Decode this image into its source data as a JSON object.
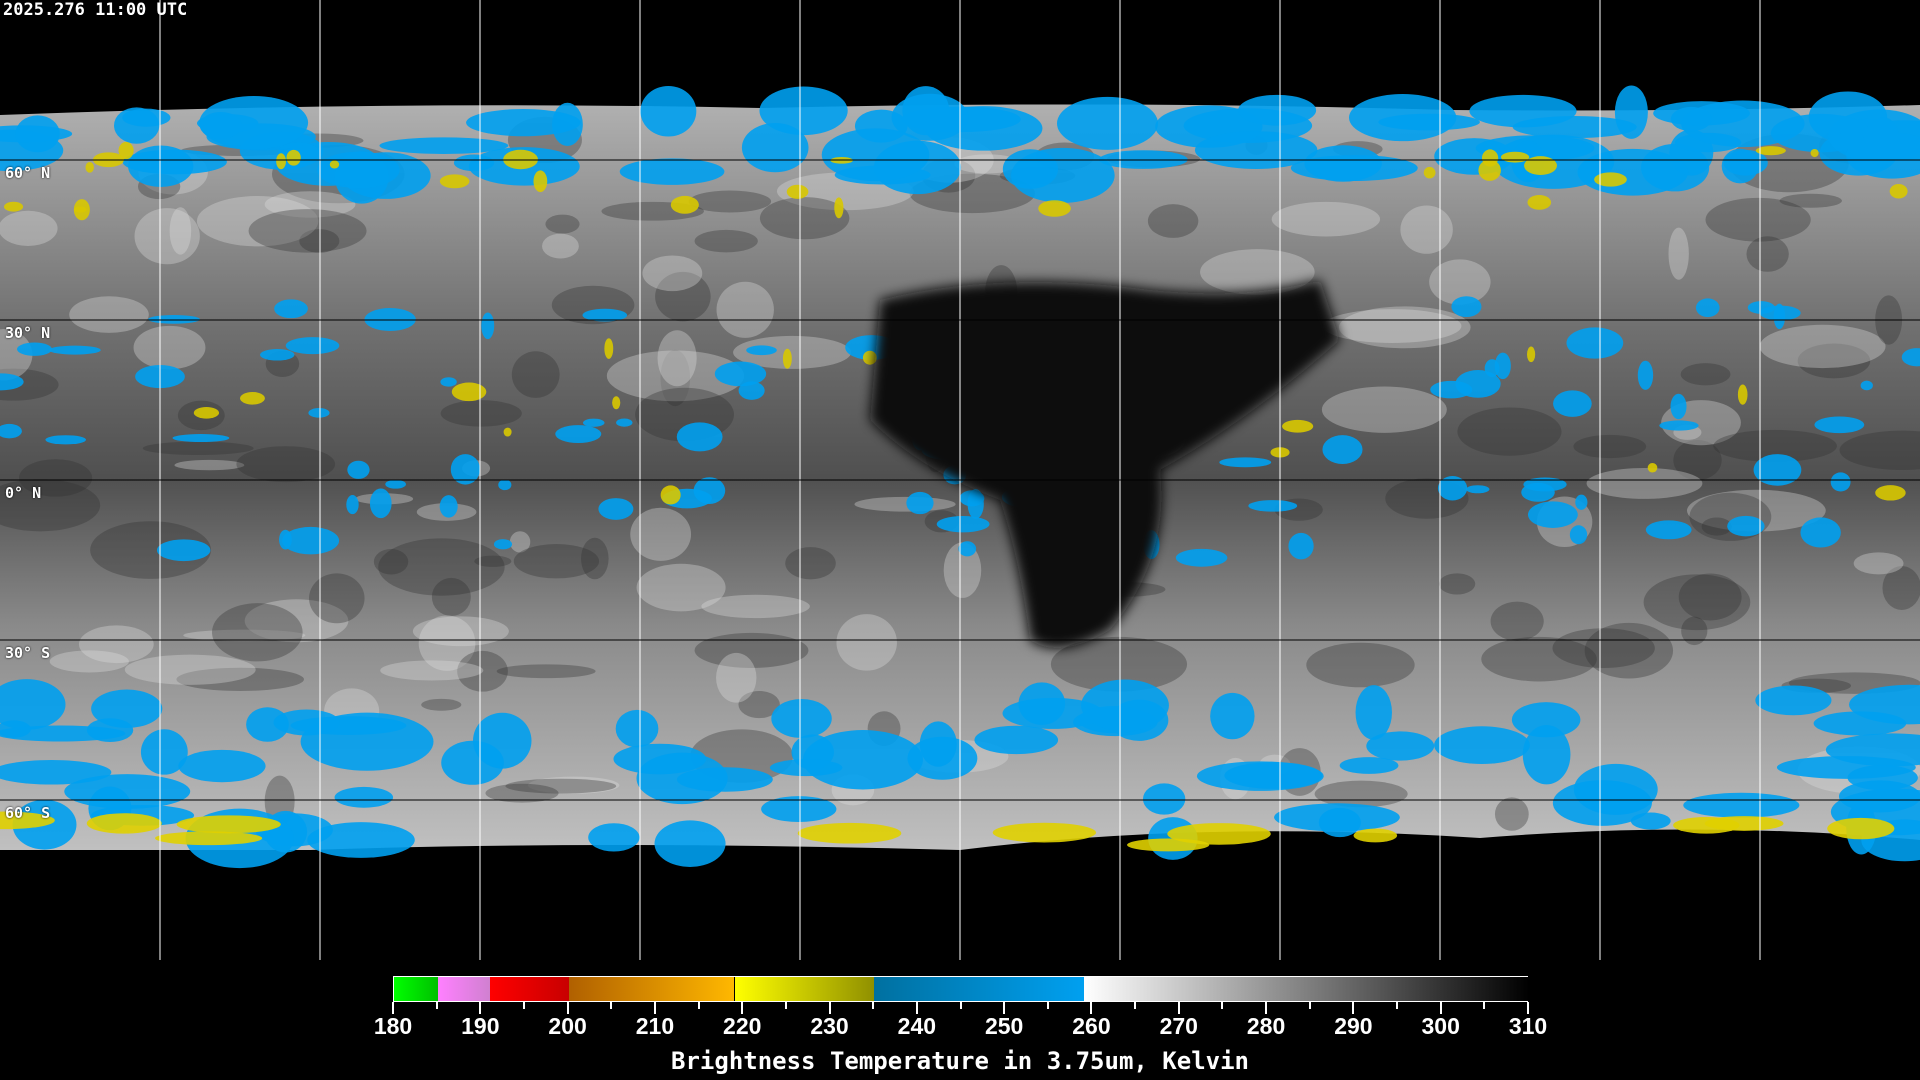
{
  "header": {
    "timestamp": "2025.276 11:00 UTC"
  },
  "map": {
    "projection": "equirectangular",
    "grid_spacing_deg": 30,
    "lat_labels": [
      "60° N",
      "30° N",
      "0° N",
      "30° S",
      "60° S"
    ],
    "lat_values": [
      60,
      30,
      0,
      -30,
      -60
    ]
  },
  "colorbar": {
    "title": "Brightness Temperature in 3.75um, Kelvin",
    "min": 180,
    "max": 310,
    "tick_labels": [
      "180",
      "190",
      "200",
      "210",
      "220",
      "230",
      "240",
      "250",
      "260",
      "270",
      "280",
      "290",
      "300",
      "310"
    ],
    "segments": [
      {
        "from": 180,
        "to": 185,
        "c1": "#00ff00",
        "c2": "#00c000"
      },
      {
        "from": 185,
        "to": 191,
        "c1": "#ff80ff",
        "c2": "#d080d0"
      },
      {
        "from": 191,
        "to": 200,
        "c1": "#ff0000",
        "c2": "#c80000"
      },
      {
        "from": 200,
        "to": 219,
        "c1": "#b06000",
        "c2": "#ffb800"
      },
      {
        "from": 219,
        "to": 235,
        "c1": "#ffff00",
        "c2": "#909000"
      },
      {
        "from": 235,
        "to": 259,
        "c1": "#0070a0",
        "c2": "#00a0f0"
      },
      {
        "from": 259,
        "to": 310,
        "c1": "#ffffff",
        "c2": "#000000"
      }
    ]
  }
}
